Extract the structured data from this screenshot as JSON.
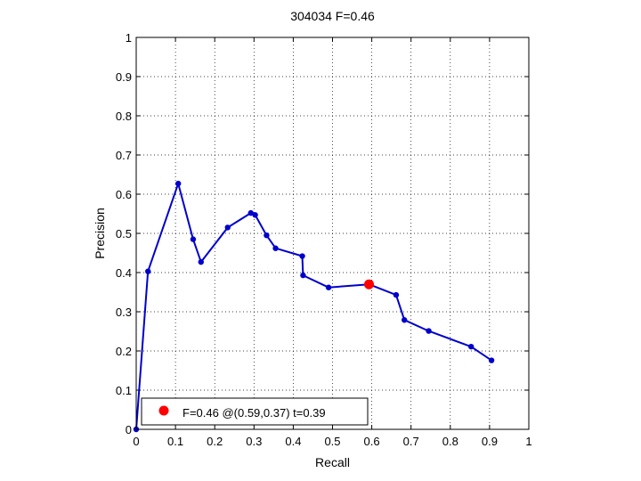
{
  "chart_data": {
    "type": "line",
    "title": "304034 F=0.46",
    "xlabel": "Recall",
    "ylabel": "Precision",
    "xlim": [
      0,
      1
    ],
    "ylim": [
      0,
      1
    ],
    "xticks": [
      "0",
      "0.1",
      "0.2",
      "0.3",
      "0.4",
      "0.5",
      "0.6",
      "0.7",
      "0.8",
      "0.9",
      "1"
    ],
    "yticks": [
      "0",
      "0.1",
      "0.2",
      "0.3",
      "0.4",
      "0.5",
      "0.6",
      "0.7",
      "0.8",
      "0.9",
      "1"
    ],
    "grid": true,
    "legend_placement": "bottom-left",
    "series": [
      {
        "color": "#0000cc",
        "marker": "dot",
        "points": [
          {
            "x": 0.0,
            "y": 0.0
          },
          {
            "x": 0.03,
            "y": 0.403
          },
          {
            "x": 0.107,
            "y": 0.627
          },
          {
            "x": 0.145,
            "y": 0.485
          },
          {
            "x": 0.165,
            "y": 0.427
          },
          {
            "x": 0.233,
            "y": 0.515
          },
          {
            "x": 0.292,
            "y": 0.552
          },
          {
            "x": 0.303,
            "y": 0.547
          },
          {
            "x": 0.332,
            "y": 0.495
          },
          {
            "x": 0.355,
            "y": 0.462
          },
          {
            "x": 0.423,
            "y": 0.442
          },
          {
            "x": 0.425,
            "y": 0.393
          },
          {
            "x": 0.49,
            "y": 0.362
          },
          {
            "x": 0.593,
            "y": 0.37
          },
          {
            "x": 0.662,
            "y": 0.343
          },
          {
            "x": 0.683,
            "y": 0.279
          },
          {
            "x": 0.745,
            "y": 0.251
          },
          {
            "x": 0.853,
            "y": 0.211
          },
          {
            "x": 0.905,
            "y": 0.176
          }
        ]
      }
    ],
    "best_point": {
      "x": 0.593,
      "y": 0.37,
      "color": "#ff0000"
    },
    "legend": {
      "label": "F=0.46 @(0.59,0.37) t=0.39",
      "marker_color": "#ff0000"
    }
  }
}
